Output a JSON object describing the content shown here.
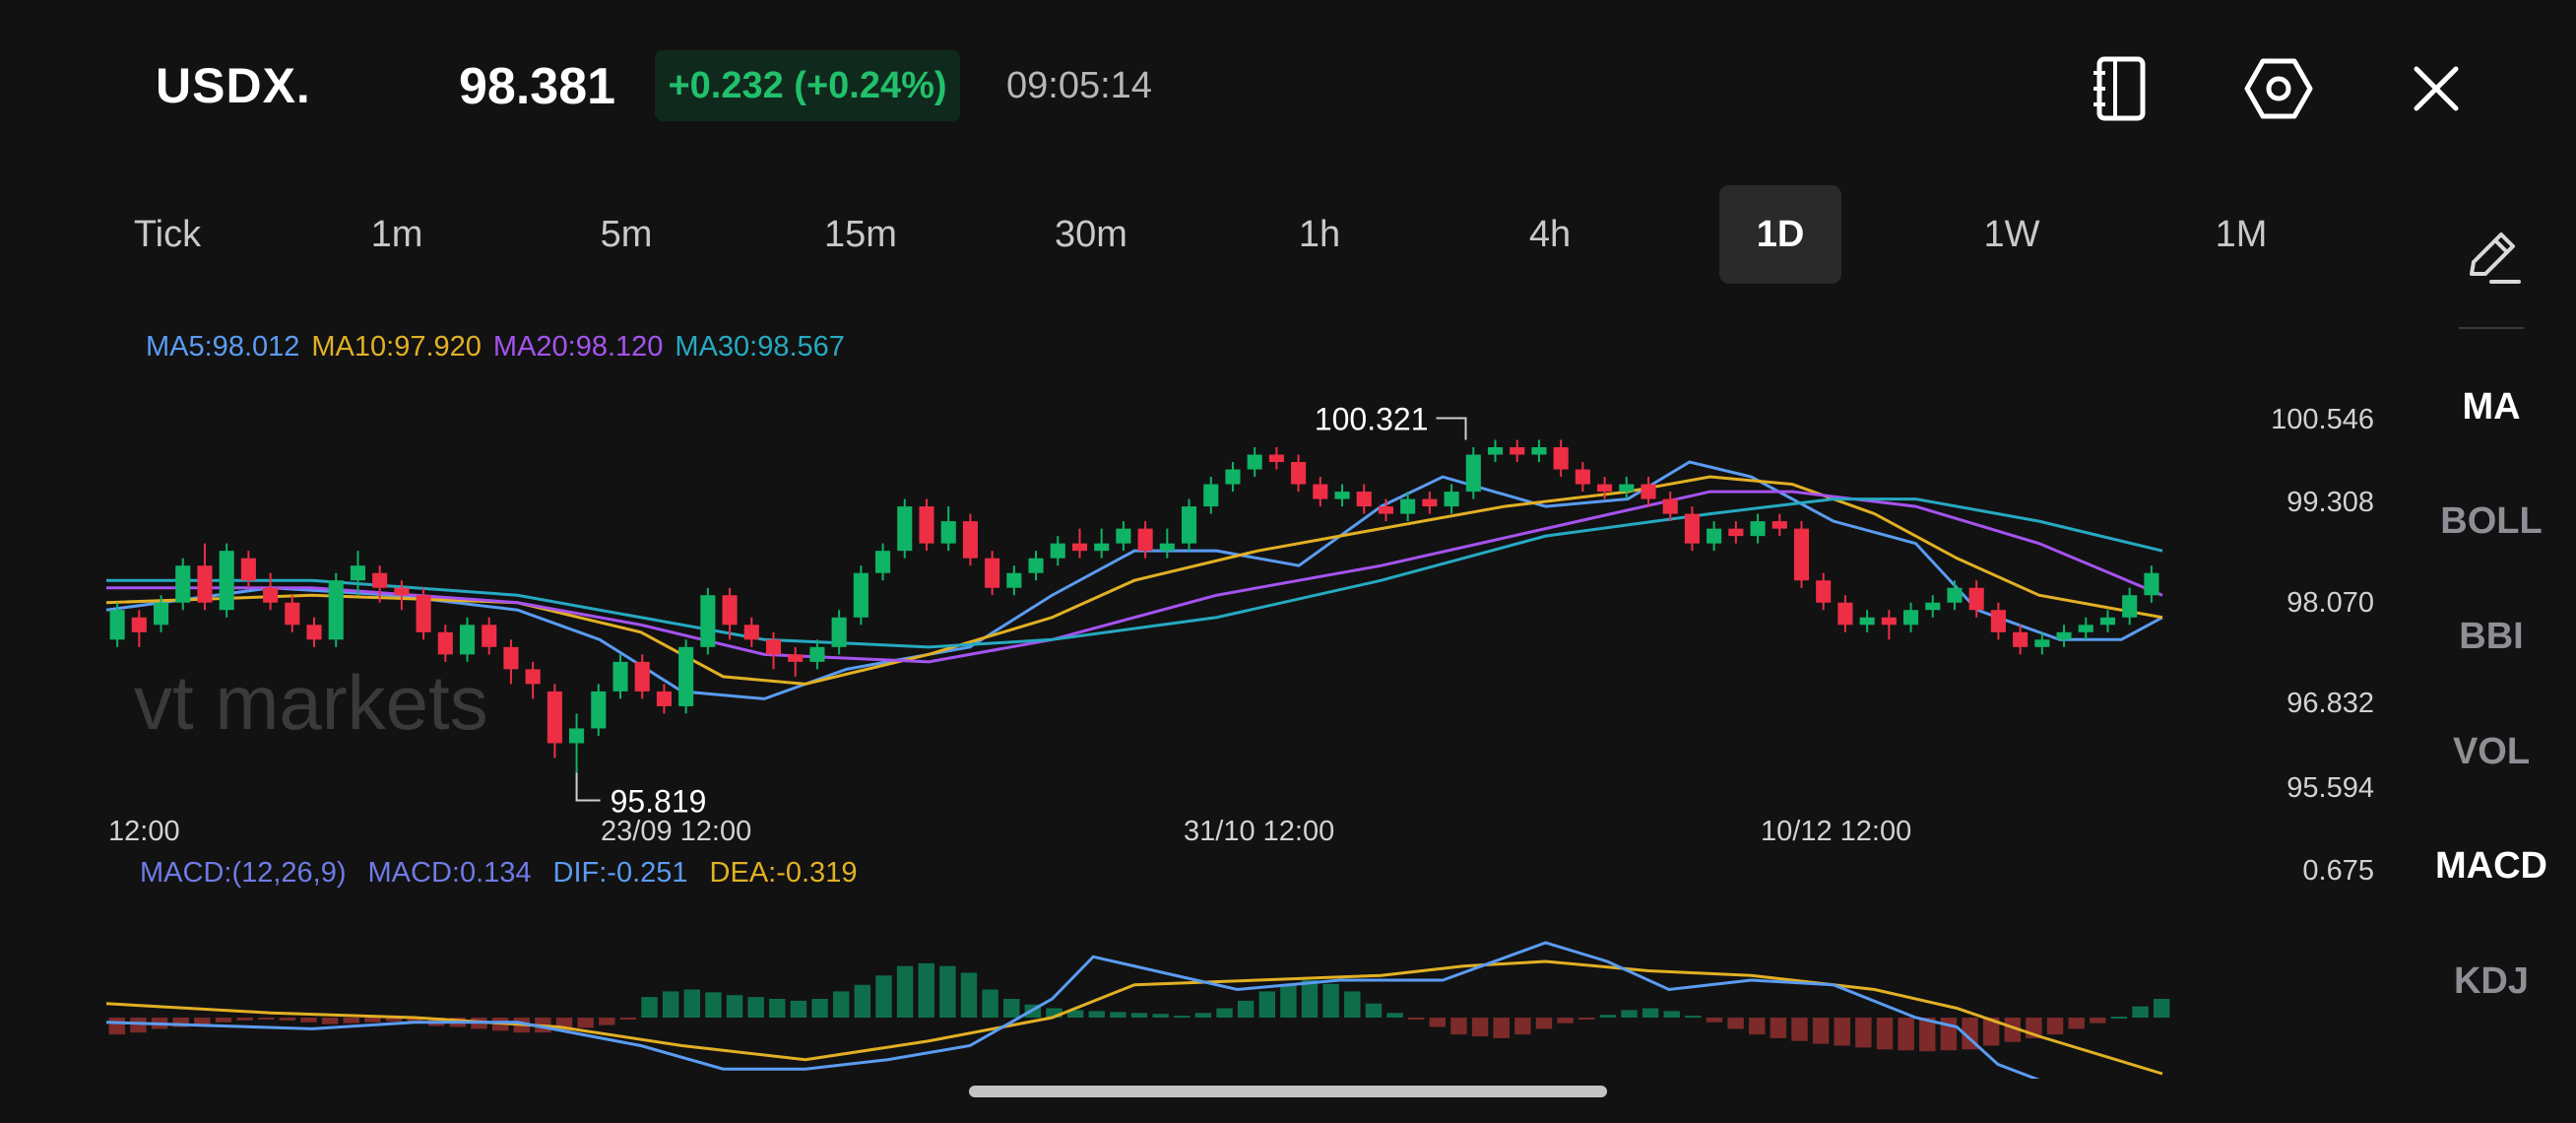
{
  "header": {
    "symbol": "USDX.",
    "price": "98.381",
    "change": "+0.232 (+0.24%)",
    "time": "09:05:14",
    "icons": [
      "notebook-icon",
      "settings-hexagon-icon",
      "close-icon"
    ]
  },
  "timeframes": {
    "items": [
      "Tick",
      "1m",
      "5m",
      "15m",
      "30m",
      "1h",
      "4h",
      "1D",
      "1W",
      "1M"
    ],
    "active": "1D"
  },
  "ma_legend": [
    {
      "text": "MA5:98.012",
      "color": "#5a9cf2"
    },
    {
      "text": "MA10:97.920",
      "color": "#e2b024"
    },
    {
      "text": "MA20:98.120",
      "color": "#a653f0"
    },
    {
      "text": "MA30:98.567",
      "color": "#26a9c2"
    }
  ],
  "macd_legend": [
    {
      "text": "MACD:(12,26,9)",
      "color": "#6f7be6"
    },
    {
      "text": "MACD:0.134",
      "color": "#6f7be6"
    },
    {
      "text": "DIF:-0.251",
      "color": "#5a9cf2"
    },
    {
      "text": "DEA:-0.319",
      "color": "#e2b024"
    }
  ],
  "indicators": {
    "items": [
      "MA",
      "BOLL",
      "BBI",
      "VOL",
      "MACD",
      "KDJ"
    ],
    "active": [
      "MA",
      "MACD"
    ]
  },
  "watermark": "vt markets",
  "colors": {
    "up": "#0fb466",
    "down": "#ee2e45",
    "macd_up": "#0e6e4b",
    "macd_down": "#7c2a2a"
  },
  "chart_data": {
    "type": "candlestick",
    "y_ticks": [
      "100.546",
      "99.308",
      "98.070",
      "96.832",
      "95.594"
    ],
    "x_ticks": [
      "12:00",
      "23/09 12:00",
      "31/10 12:00",
      "10/12 12:00"
    ],
    "ylim": [
      95.594,
      100.546
    ],
    "high_label": "100.321",
    "low_label": "95.819",
    "macd_axis_label": "0.675",
    "candles": [
      [
        97.6,
        98.0,
        97.5,
        98.1
      ],
      [
        97.9,
        97.7,
        97.5,
        98.0
      ],
      [
        97.8,
        98.1,
        97.7,
        98.2
      ],
      [
        98.1,
        98.6,
        98.0,
        98.7
      ],
      [
        98.6,
        98.1,
        98.0,
        98.9
      ],
      [
        98.0,
        98.8,
        97.9,
        98.9
      ],
      [
        98.7,
        98.4,
        98.3,
        98.8
      ],
      [
        98.3,
        98.1,
        98.0,
        98.5
      ],
      [
        98.1,
        97.8,
        97.7,
        98.2
      ],
      [
        97.8,
        97.6,
        97.5,
        97.9
      ],
      [
        97.6,
        98.4,
        97.5,
        98.5
      ],
      [
        98.4,
        98.6,
        98.2,
        98.8
      ],
      [
        98.5,
        98.3,
        98.1,
        98.6
      ],
      [
        98.3,
        98.2,
        98.0,
        98.4
      ],
      [
        98.2,
        97.7,
        97.6,
        98.3
      ],
      [
        97.7,
        97.4,
        97.3,
        97.8
      ],
      [
        97.4,
        97.8,
        97.3,
        97.9
      ],
      [
        97.8,
        97.5,
        97.4,
        97.9
      ],
      [
        97.5,
        97.2,
        97.0,
        97.6
      ],
      [
        97.2,
        97.0,
        96.8,
        97.3
      ],
      [
        96.9,
        96.2,
        96.0,
        97.0
      ],
      [
        96.2,
        96.4,
        95.8,
        96.6
      ],
      [
        96.4,
        96.9,
        96.3,
        97.0
      ],
      [
        96.9,
        97.3,
        96.8,
        97.4
      ],
      [
        97.3,
        96.9,
        96.8,
        97.4
      ],
      [
        96.9,
        96.7,
        96.6,
        97.0
      ],
      [
        96.7,
        97.5,
        96.6,
        97.6
      ],
      [
        97.5,
        98.2,
        97.4,
        98.3
      ],
      [
        98.2,
        97.8,
        97.6,
        98.3
      ],
      [
        97.8,
        97.6,
        97.5,
        97.9
      ],
      [
        97.6,
        97.4,
        97.2,
        97.7
      ],
      [
        97.4,
        97.3,
        97.1,
        97.5
      ],
      [
        97.3,
        97.5,
        97.2,
        97.6
      ],
      [
        97.5,
        97.9,
        97.4,
        98.0
      ],
      [
        97.9,
        98.5,
        97.8,
        98.6
      ],
      [
        98.5,
        98.8,
        98.4,
        98.9
      ],
      [
        98.8,
        99.4,
        98.7,
        99.5
      ],
      [
        99.4,
        98.9,
        98.8,
        99.5
      ],
      [
        98.9,
        99.2,
        98.8,
        99.4
      ],
      [
        99.2,
        98.7,
        98.6,
        99.3
      ],
      [
        98.7,
        98.3,
        98.2,
        98.8
      ],
      [
        98.3,
        98.5,
        98.2,
        98.6
      ],
      [
        98.5,
        98.7,
        98.4,
        98.8
      ],
      [
        98.7,
        98.9,
        98.6,
        99.0
      ],
      [
        98.9,
        98.8,
        98.7,
        99.1
      ],
      [
        98.8,
        98.9,
        98.7,
        99.1
      ],
      [
        98.9,
        99.1,
        98.8,
        99.2
      ],
      [
        99.1,
        98.8,
        98.7,
        99.2
      ],
      [
        98.8,
        98.9,
        98.7,
        99.1
      ],
      [
        98.9,
        99.4,
        98.8,
        99.5
      ],
      [
        99.4,
        99.7,
        99.3,
        99.8
      ],
      [
        99.7,
        99.9,
        99.6,
        100.0
      ],
      [
        99.9,
        100.1,
        99.8,
        100.2
      ],
      [
        100.1,
        100.0,
        99.9,
        100.2
      ],
      [
        100.0,
        99.7,
        99.6,
        100.1
      ],
      [
        99.7,
        99.5,
        99.4,
        99.8
      ],
      [
        99.5,
        99.6,
        99.4,
        99.7
      ],
      [
        99.6,
        99.4,
        99.3,
        99.7
      ],
      [
        99.4,
        99.3,
        99.2,
        99.5
      ],
      [
        99.3,
        99.5,
        99.2,
        99.6
      ],
      [
        99.5,
        99.4,
        99.3,
        99.6
      ],
      [
        99.4,
        99.6,
        99.3,
        99.7
      ],
      [
        99.6,
        100.1,
        99.5,
        100.2
      ],
      [
        100.1,
        100.2,
        100.0,
        100.3
      ],
      [
        100.2,
        100.1,
        100.0,
        100.3
      ],
      [
        100.1,
        100.2,
        100.0,
        100.3
      ],
      [
        100.2,
        99.9,
        99.8,
        100.3
      ],
      [
        99.9,
        99.7,
        99.6,
        100.0
      ],
      [
        99.7,
        99.6,
        99.5,
        99.8
      ],
      [
        99.6,
        99.7,
        99.5,
        99.8
      ],
      [
        99.7,
        99.5,
        99.4,
        99.8
      ],
      [
        99.5,
        99.3,
        99.2,
        99.6
      ],
      [
        99.3,
        98.9,
        98.8,
        99.4
      ],
      [
        98.9,
        99.1,
        98.8,
        99.2
      ],
      [
        99.1,
        99.0,
        98.9,
        99.2
      ],
      [
        99.0,
        99.2,
        98.9,
        99.3
      ],
      [
        99.2,
        99.1,
        99.0,
        99.3
      ],
      [
        99.1,
        98.4,
        98.3,
        99.2
      ],
      [
        98.4,
        98.1,
        98.0,
        98.5
      ],
      [
        98.1,
        97.8,
        97.7,
        98.2
      ],
      [
        97.8,
        97.9,
        97.7,
        98.0
      ],
      [
        97.9,
        97.8,
        97.6,
        98.0
      ],
      [
        97.8,
        98.0,
        97.7,
        98.1
      ],
      [
        98.0,
        98.1,
        97.9,
        98.2
      ],
      [
        98.1,
        98.3,
        98.0,
        98.4
      ],
      [
        98.3,
        98.0,
        97.9,
        98.4
      ],
      [
        98.0,
        97.7,
        97.6,
        98.1
      ],
      [
        97.7,
        97.5,
        97.4,
        97.8
      ],
      [
        97.5,
        97.6,
        97.4,
        97.7
      ],
      [
        97.6,
        97.7,
        97.5,
        97.8
      ],
      [
        97.7,
        97.8,
        97.6,
        97.9
      ],
      [
        97.8,
        97.9,
        97.7,
        98.0
      ],
      [
        97.9,
        98.2,
        97.8,
        98.3
      ],
      [
        98.2,
        98.5,
        98.1,
        98.6
      ]
    ],
    "ma_curves": {
      "MA5": [
        [
          0,
          98.0
        ],
        [
          0.08,
          98.3
        ],
        [
          0.14,
          98.2
        ],
        [
          0.2,
          98.0
        ],
        [
          0.24,
          97.6
        ],
        [
          0.28,
          96.9
        ],
        [
          0.32,
          96.8
        ],
        [
          0.36,
          97.2
        ],
        [
          0.42,
          97.5
        ],
        [
          0.46,
          98.2
        ],
        [
          0.5,
          98.8
        ],
        [
          0.54,
          98.8
        ],
        [
          0.58,
          98.6
        ],
        [
          0.62,
          99.4
        ],
        [
          0.65,
          99.8
        ],
        [
          0.7,
          99.4
        ],
        [
          0.74,
          99.5
        ],
        [
          0.77,
          100.0
        ],
        [
          0.8,
          99.8
        ],
        [
          0.84,
          99.2
        ],
        [
          0.88,
          98.9
        ],
        [
          0.91,
          98.0
        ],
        [
          0.95,
          97.6
        ],
        [
          0.98,
          97.6
        ],
        [
          1.0,
          97.9
        ]
      ],
      "MA10": [
        [
          0,
          98.1
        ],
        [
          0.1,
          98.2
        ],
        [
          0.2,
          98.1
        ],
        [
          0.26,
          97.7
        ],
        [
          0.3,
          97.1
        ],
        [
          0.34,
          97.0
        ],
        [
          0.4,
          97.4
        ],
        [
          0.46,
          97.9
        ],
        [
          0.5,
          98.4
        ],
        [
          0.56,
          98.8
        ],
        [
          0.62,
          99.1
        ],
        [
          0.68,
          99.4
        ],
        [
          0.74,
          99.6
        ],
        [
          0.78,
          99.8
        ],
        [
          0.82,
          99.7
        ],
        [
          0.86,
          99.3
        ],
        [
          0.9,
          98.7
        ],
        [
          0.94,
          98.2
        ],
        [
          1.0,
          97.9
        ]
      ],
      "MA20": [
        [
          0,
          98.3
        ],
        [
          0.1,
          98.3
        ],
        [
          0.2,
          98.1
        ],
        [
          0.26,
          97.8
        ],
        [
          0.32,
          97.4
        ],
        [
          0.4,
          97.3
        ],
        [
          0.46,
          97.6
        ],
        [
          0.54,
          98.2
        ],
        [
          0.62,
          98.6
        ],
        [
          0.7,
          99.1
        ],
        [
          0.78,
          99.6
        ],
        [
          0.82,
          99.6
        ],
        [
          0.88,
          99.4
        ],
        [
          0.94,
          98.9
        ],
        [
          1.0,
          98.2
        ]
      ],
      "MA30": [
        [
          0,
          98.4
        ],
        [
          0.1,
          98.4
        ],
        [
          0.2,
          98.2
        ],
        [
          0.26,
          97.9
        ],
        [
          0.32,
          97.6
        ],
        [
          0.4,
          97.5
        ],
        [
          0.46,
          97.6
        ],
        [
          0.54,
          97.9
        ],
        [
          0.62,
          98.4
        ],
        [
          0.7,
          99.0
        ],
        [
          0.78,
          99.3
        ],
        [
          0.84,
          99.5
        ],
        [
          0.88,
          99.5
        ],
        [
          0.94,
          99.2
        ],
        [
          1.0,
          98.8
        ]
      ]
    },
    "macd": {
      "hist": [
        -0.18,
        -0.16,
        -0.12,
        -0.1,
        -0.08,
        -0.05,
        -0.03,
        -0.01,
        -0.03,
        -0.05,
        -0.07,
        -0.06,
        -0.05,
        -0.04,
        -0.06,
        -0.09,
        -0.1,
        -0.12,
        -0.14,
        -0.16,
        -0.16,
        -0.14,
        -0.11,
        -0.08,
        -0.02,
        0.22,
        0.28,
        0.3,
        0.27,
        0.24,
        0.22,
        0.2,
        0.18,
        0.2,
        0.28,
        0.35,
        0.45,
        0.55,
        0.58,
        0.55,
        0.48,
        0.3,
        0.2,
        0.14,
        0.1,
        0.08,
        0.07,
        0.06,
        0.05,
        0.04,
        0.02,
        0.05,
        0.1,
        0.18,
        0.28,
        0.35,
        0.4,
        0.36,
        0.28,
        0.15,
        0.05,
        -0.02,
        -0.1,
        -0.18,
        -0.2,
        -0.22,
        -0.18,
        -0.12,
        -0.06,
        -0.02,
        0.03,
        0.08,
        0.1,
        0.07,
        0.02,
        -0.05,
        -0.12,
        -0.18,
        -0.22,
        -0.25,
        -0.28,
        -0.3,
        -0.32,
        -0.34,
        -0.35,
        -0.36,
        -0.35,
        -0.34,
        -0.3,
        -0.26,
        -0.22,
        -0.18,
        -0.12,
        -0.06,
        0.01,
        0.12,
        0.2
      ],
      "dif": [
        [
          0,
          -0.05
        ],
        [
          0.1,
          -0.12
        ],
        [
          0.15,
          -0.05
        ],
        [
          0.2,
          -0.05
        ],
        [
          0.26,
          -0.3
        ],
        [
          0.3,
          -0.55
        ],
        [
          0.34,
          -0.55
        ],
        [
          0.38,
          -0.45
        ],
        [
          0.42,
          -0.3
        ],
        [
          0.46,
          0.2
        ],
        [
          0.48,
          0.65
        ],
        [
          0.5,
          0.55
        ],
        [
          0.55,
          0.3
        ],
        [
          0.6,
          0.4
        ],
        [
          0.65,
          0.4
        ],
        [
          0.7,
          0.8
        ],
        [
          0.73,
          0.6
        ],
        [
          0.76,
          0.3
        ],
        [
          0.8,
          0.4
        ],
        [
          0.84,
          0.35
        ],
        [
          0.88,
          0.0
        ],
        [
          0.9,
          -0.1
        ],
        [
          0.92,
          -0.5
        ],
        [
          0.95,
          -0.75
        ],
        [
          1.0,
          -0.7
        ]
      ],
      "dea": [
        [
          0,
          0.15
        ],
        [
          0.08,
          0.05
        ],
        [
          0.15,
          0.0
        ],
        [
          0.22,
          -0.1
        ],
        [
          0.28,
          -0.3
        ],
        [
          0.34,
          -0.45
        ],
        [
          0.4,
          -0.25
        ],
        [
          0.46,
          0.0
        ],
        [
          0.5,
          0.35
        ],
        [
          0.56,
          0.4
        ],
        [
          0.62,
          0.45
        ],
        [
          0.66,
          0.55
        ],
        [
          0.7,
          0.6
        ],
        [
          0.75,
          0.5
        ],
        [
          0.8,
          0.45
        ],
        [
          0.86,
          0.3
        ],
        [
          0.9,
          0.1
        ],
        [
          0.94,
          -0.2
        ],
        [
          1.0,
          -0.6
        ]
      ]
    }
  }
}
